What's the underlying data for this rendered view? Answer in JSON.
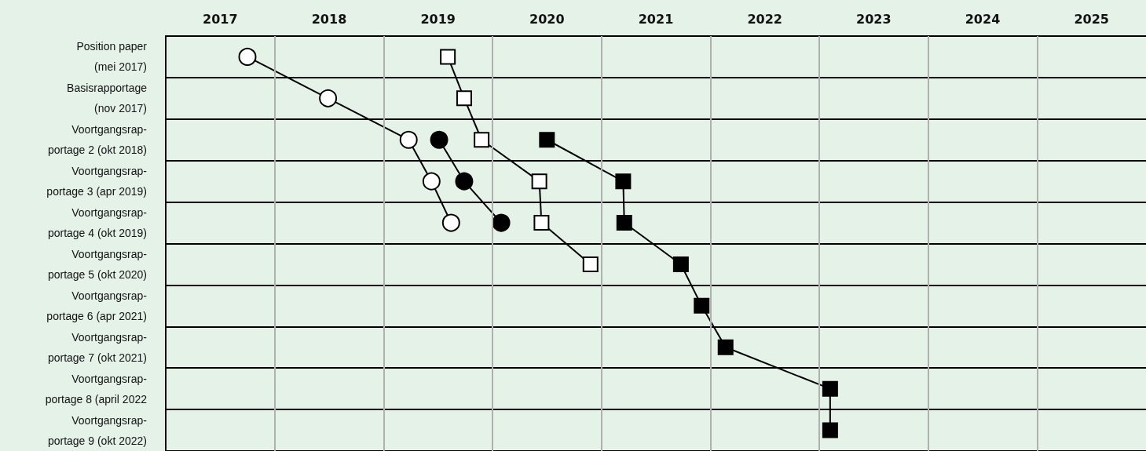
{
  "chart_data": {
    "type": "line",
    "orientation": "horizontal",
    "categories": [
      "Position paper\n(mei 2017)",
      "Basisrapportage\n(nov 2017)",
      "Voortgangsrap-\nportage 2 (okt 2018)",
      "Voortgangsrap-\nportage 3 (apr 2019)",
      "Voortgangsrap-\nportage 4 (okt 2019)",
      "Voortgangsrap-\nportage 5 (okt 2020)",
      "Voortgangsrap-\nportage 6 (apr 2021)",
      "Voortgangsrap-\nportage 7 (okt 2021)",
      "Voortgangsrap-\nportage 8 (april 2022",
      "Voortgangsrap-\nportage 9 (okt 2022)"
    ],
    "xlim": [
      2016.5,
      2025.5
    ],
    "xticks": [
      2017,
      2018,
      2019,
      2020,
      2021,
      2022,
      2023,
      2024,
      2025
    ],
    "grid": "y",
    "ref_lines": [
      {
        "axis": "x",
        "value": 2017.5,
        "color": "#b0b0b0"
      },
      {
        "axis": "x",
        "value": 2018.5,
        "color": "#b0b0b0"
      },
      {
        "axis": "x",
        "value": 2019.5,
        "color": "#b0b0b0"
      },
      {
        "axis": "x",
        "value": 2020.5,
        "color": "#b0b0b0"
      },
      {
        "axis": "x",
        "value": 2021.5,
        "color": "#b0b0b0"
      },
      {
        "axis": "x",
        "value": 2022.5,
        "color": "#b0b0b0"
      },
      {
        "axis": "x",
        "value": 2023.5,
        "color": "#b0b0b0"
      },
      {
        "axis": "x",
        "value": 2024.5,
        "color": "#b0b0b0"
      }
    ],
    "series": [
      {
        "marker": "circle",
        "color": "#ffffff",
        "values": [
          2017.25,
          2017.99,
          2018.73,
          2018.94,
          2019.12,
          null,
          null,
          null,
          null,
          null
        ]
      },
      {
        "marker": "circle",
        "color": "#000000",
        "values": [
          null,
          null,
          2019.01,
          2019.24,
          2019.58,
          null,
          null,
          null,
          null,
          null
        ]
      },
      {
        "marker": "square",
        "color": "#ffffff",
        "values": [
          2019.09,
          2019.24,
          2019.4,
          2019.93,
          2019.95,
          2020.4,
          null,
          null,
          null,
          null
        ]
      },
      {
        "marker": "square",
        "color": "#000000",
        "values": [
          null,
          null,
          2020.0,
          2020.7,
          2020.71,
          2021.23,
          2021.42,
          2021.64,
          2022.6,
          2022.6
        ]
      }
    ]
  }
}
